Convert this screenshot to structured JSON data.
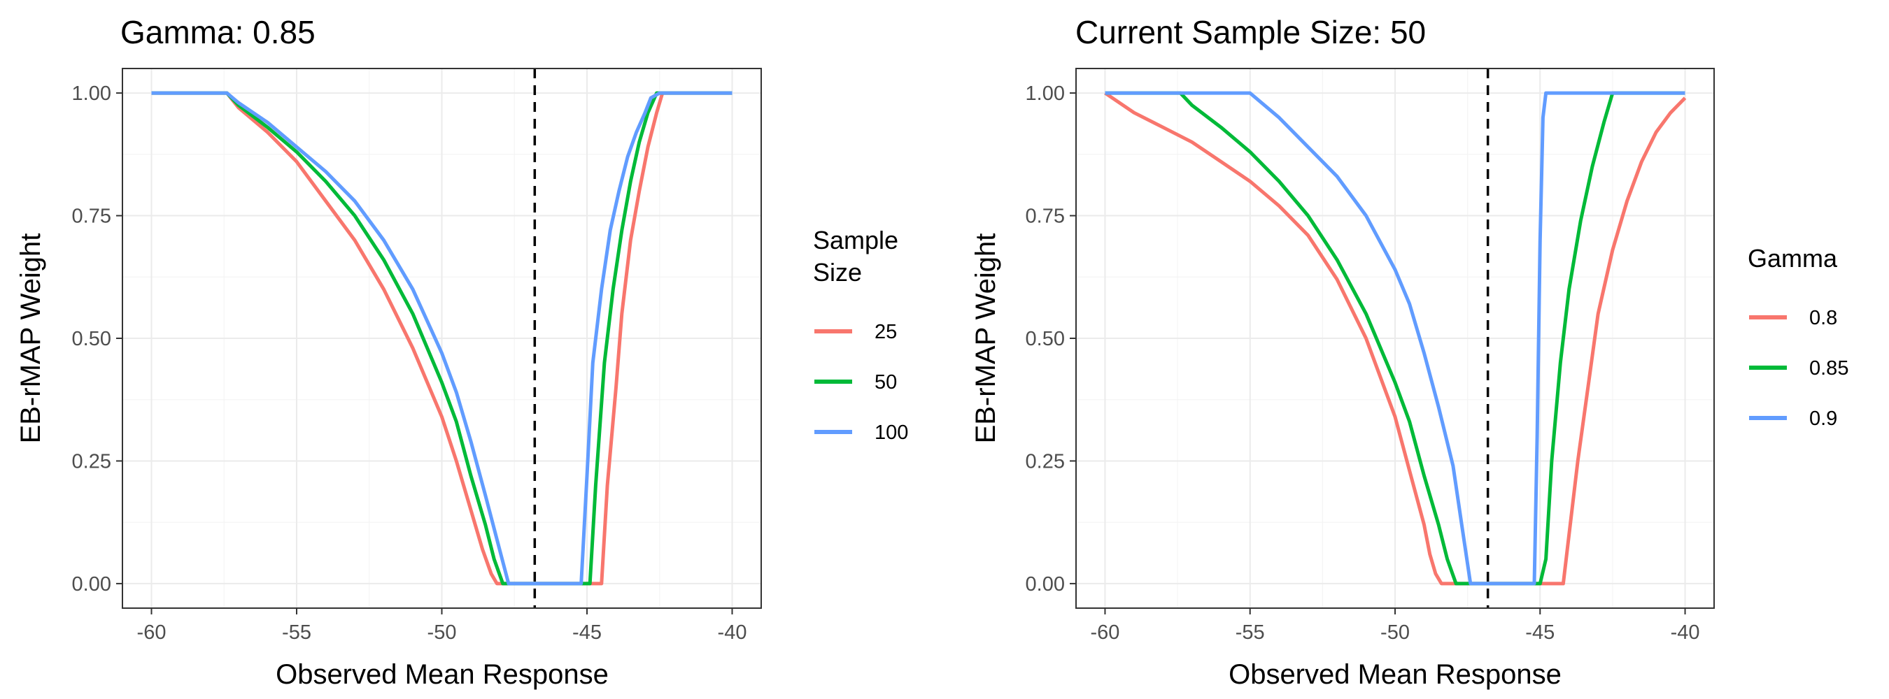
{
  "chart_data": [
    {
      "type": "line",
      "title": "Gamma: 0.85",
      "xlabel": "Observed Mean Response",
      "ylabel": "EB-rMAP Weight",
      "xlim": [
        -61,
        -39
      ],
      "ylim": [
        -0.05,
        1.05
      ],
      "xticks": [
        -60,
        -55,
        -50,
        -45,
        -40
      ],
      "yticks": [
        0,
        0.25,
        0.5,
        0.75,
        1
      ],
      "xtick_labels": [
        "-60",
        "-55",
        "-50",
        "-45",
        "-40"
      ],
      "ytick_labels": [
        "0.00",
        "0.25",
        "0.50",
        "0.75",
        "1.00"
      ],
      "grid": true,
      "legend": {
        "title": "Sample Size",
        "title_lines": [
          "Sample",
          "Size"
        ],
        "position": "right"
      },
      "reference_line": {
        "x": -46.8,
        "style": "dashed"
      },
      "series": [
        {
          "name": "25",
          "color": "#F8766D",
          "x": [
            -60,
            -57.4,
            -57.0,
            -56.0,
            -55.0,
            -54.0,
            -53.0,
            -52.0,
            -51.0,
            -50.0,
            -49.5,
            -49.0,
            -48.6,
            -48.3,
            -48.1,
            -47.0,
            -44.5,
            -44.3,
            -44.0,
            -43.8,
            -43.5,
            -43.2,
            -42.9,
            -42.6,
            -42.4,
            -40
          ],
          "y": [
            1,
            1,
            0.97,
            0.92,
            0.86,
            0.78,
            0.7,
            0.6,
            0.48,
            0.34,
            0.25,
            0.15,
            0.07,
            0.02,
            0,
            0,
            0,
            0.2,
            0.4,
            0.55,
            0.7,
            0.8,
            0.89,
            0.96,
            1,
            1
          ]
        },
        {
          "name": "50",
          "color": "#00BA38",
          "x": [
            -60,
            -57.4,
            -57.0,
            -56.0,
            -55.0,
            -54.0,
            -53.0,
            -52.0,
            -51.0,
            -50.0,
            -49.5,
            -49.0,
            -48.5,
            -48.2,
            -47.9,
            -47.0,
            -44.9,
            -44.7,
            -44.4,
            -44.1,
            -43.8,
            -43.5,
            -43.2,
            -42.9,
            -42.6,
            -40
          ],
          "y": [
            1,
            1,
            0.975,
            0.93,
            0.88,
            0.82,
            0.75,
            0.66,
            0.55,
            0.41,
            0.33,
            0.22,
            0.12,
            0.05,
            0,
            0,
            0,
            0.2,
            0.45,
            0.6,
            0.72,
            0.82,
            0.9,
            0.96,
            1,
            1
          ]
        },
        {
          "name": "100",
          "color": "#619CFF",
          "x": [
            -60,
            -57.4,
            -57.0,
            -56.0,
            -55.0,
            -54.0,
            -53.0,
            -52.0,
            -51.0,
            -50.0,
            -49.5,
            -49.0,
            -48.5,
            -48.1,
            -47.7,
            -47.0,
            -45.2,
            -45.0,
            -44.8,
            -44.5,
            -44.2,
            -43.9,
            -43.6,
            -43.3,
            -43.0,
            -42.8,
            -42.5,
            -40
          ],
          "y": [
            1,
            1,
            0.98,
            0.94,
            0.89,
            0.84,
            0.78,
            0.7,
            0.6,
            0.47,
            0.39,
            0.29,
            0.18,
            0.09,
            0,
            0,
            0,
            0.22,
            0.45,
            0.6,
            0.72,
            0.8,
            0.87,
            0.92,
            0.96,
            0.99,
            1,
            1
          ]
        }
      ]
    },
    {
      "type": "line",
      "title": "Current Sample Size: 50",
      "xlabel": "Observed Mean Response",
      "ylabel": "EB-rMAP Weight",
      "xlim": [
        -61,
        -39
      ],
      "ylim": [
        -0.05,
        1.05
      ],
      "xticks": [
        -60,
        -55,
        -50,
        -45,
        -40
      ],
      "yticks": [
        0,
        0.25,
        0.5,
        0.75,
        1
      ],
      "xtick_labels": [
        "-60",
        "-55",
        "-50",
        "-45",
        "-40"
      ],
      "ytick_labels": [
        "0.00",
        "0.25",
        "0.50",
        "0.75",
        "1.00"
      ],
      "grid": true,
      "legend": {
        "title": "Gamma",
        "title_lines": [
          "Gamma"
        ],
        "position": "right"
      },
      "reference_line": {
        "x": -46.8,
        "style": "dashed"
      },
      "series": [
        {
          "name": "0.8",
          "color": "#F8766D",
          "x": [
            -60,
            -59.0,
            -58.0,
            -57.0,
            -56.0,
            -55.0,
            -54.0,
            -53.0,
            -52.0,
            -51.0,
            -50.0,
            -49.5,
            -49.0,
            -48.8,
            -48.6,
            -48.4,
            -44.2,
            -44.0,
            -43.7,
            -43.3,
            -43.0,
            -42.5,
            -42.0,
            -41.5,
            -41.0,
            -40.5,
            -40
          ],
          "y": [
            1,
            0.96,
            0.93,
            0.9,
            0.86,
            0.82,
            0.77,
            0.71,
            0.62,
            0.5,
            0.34,
            0.23,
            0.12,
            0.06,
            0.02,
            0,
            0,
            0.1,
            0.25,
            0.42,
            0.55,
            0.68,
            0.78,
            0.86,
            0.92,
            0.96,
            0.99
          ]
        },
        {
          "name": "0.85",
          "color": "#00BA38",
          "x": [
            -60,
            -57.4,
            -57.0,
            -56.0,
            -55.0,
            -54.0,
            -53.0,
            -52.0,
            -51.0,
            -50.0,
            -49.5,
            -49.0,
            -48.5,
            -48.2,
            -47.9,
            -45.0,
            -44.8,
            -44.6,
            -44.3,
            -44.0,
            -43.6,
            -43.2,
            -42.8,
            -42.5,
            -40
          ],
          "y": [
            1,
            1,
            0.975,
            0.93,
            0.88,
            0.82,
            0.75,
            0.66,
            0.55,
            0.41,
            0.33,
            0.22,
            0.12,
            0.05,
            0,
            0,
            0.05,
            0.25,
            0.45,
            0.6,
            0.74,
            0.85,
            0.94,
            1,
            1
          ]
        },
        {
          "name": "0.9",
          "color": "#619CFF",
          "x": [
            -60,
            -55.0,
            -54.0,
            -53.0,
            -52.0,
            -51.0,
            -50.0,
            -49.5,
            -49.0,
            -48.5,
            -48.0,
            -47.7,
            -47.4,
            -45.2,
            -45.1,
            -45.0,
            -44.9,
            -44.8,
            -40
          ],
          "y": [
            1,
            1,
            0.95,
            0.89,
            0.83,
            0.75,
            0.64,
            0.57,
            0.47,
            0.36,
            0.24,
            0.12,
            0,
            0,
            0.3,
            0.7,
            0.95,
            1,
            1
          ]
        }
      ]
    }
  ]
}
